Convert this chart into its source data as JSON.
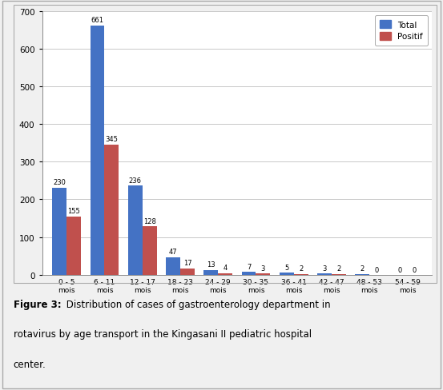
{
  "categories": [
    "0 - 5\nmois",
    "6 - 11\nmois",
    "12 - 17\nmois",
    "18 - 23\nmois",
    "24 - 29\nmois",
    "30 - 35\nmois",
    "36 - 41\nmois",
    "42 - 47\nmois",
    "48 - 53\nmois",
    "54 - 59\nmois"
  ],
  "total": [
    230,
    661,
    236,
    47,
    13,
    7,
    5,
    3,
    2,
    0
  ],
  "positif": [
    155,
    345,
    128,
    17,
    4,
    3,
    2,
    2,
    0,
    0
  ],
  "total_color": "#4472C4",
  "positif_color": "#C0504D",
  "ylim": [
    0,
    700
  ],
  "yticks": [
    0,
    100,
    200,
    300,
    400,
    500,
    600,
    700
  ],
  "legend_total": "Total",
  "legend_positif": "Positif",
  "bar_width": 0.38,
  "caption_bold": "Figure 3:",
  "caption_line1": " Distribution of cases of gastroenterology department in",
  "caption_line2": "rotavirus by age transport in the Kingasani II pediatric hospital",
  "caption_line3": "center.",
  "background_color": "#f0f0f0",
  "plot_bg_color": "#ffffff",
  "grid_color": "#c8c8c8",
  "border_color": "#bbbbbb"
}
